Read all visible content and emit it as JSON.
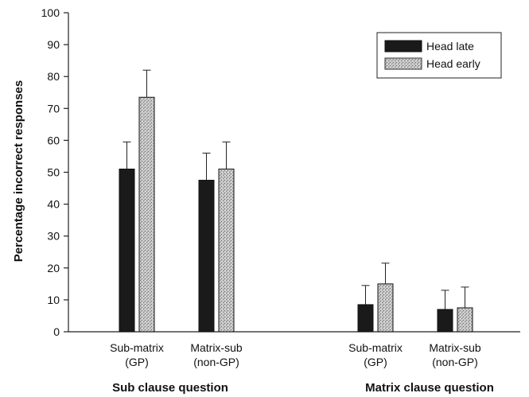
{
  "chart_data": {
    "type": "bar",
    "title": "",
    "xlabel": "",
    "ylabel": "Percentage incorrect responses",
    "ylim": [
      0,
      100
    ],
    "yticks": [
      0,
      10,
      20,
      30,
      40,
      50,
      60,
      70,
      80,
      90,
      100
    ],
    "grid": false,
    "legend_position": "top-right",
    "groups": [
      {
        "label": "Sub clause question",
        "categories": [
          {
            "line1": "Sub-matrix",
            "line2": "(GP)"
          },
          {
            "line1": "Matrix-sub",
            "line2": "(non-GP)"
          }
        ]
      },
      {
        "label": "Matrix clause question",
        "categories": [
          {
            "line1": "Sub-matrix",
            "line2": "(GP)"
          },
          {
            "line1": "Matrix-sub",
            "line2": "(non-GP)"
          }
        ]
      }
    ],
    "series": [
      {
        "name": "Head late",
        "color": "#1a1a1a",
        "pattern": "solid",
        "values": [
          51,
          47.5,
          8.5,
          7
        ],
        "errors": [
          8.5,
          8.5,
          6,
          6
        ]
      },
      {
        "name": "Head early",
        "color": "#bdbdbd",
        "pattern": "stipple",
        "values": [
          73.5,
          51,
          15,
          7.5
        ],
        "errors": [
          8.5,
          8.5,
          6.5,
          6.5
        ]
      }
    ]
  }
}
